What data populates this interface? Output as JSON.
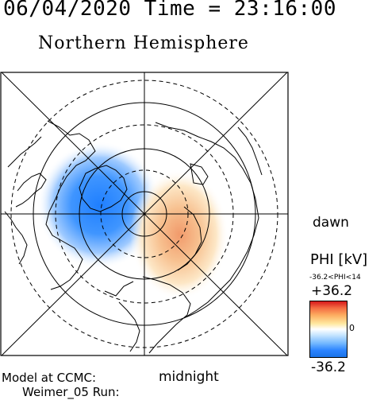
{
  "header": {
    "date_time": "06/04/2020 Time = 23:16:00",
    "title": "Northern Hemisphere"
  },
  "map": {
    "direction_labels": {
      "right": "dawn",
      "bottom": "midnight"
    },
    "projection": "polar-stereographic",
    "potential_pattern": {
      "negative_cell_color": "#2b83ff",
      "positive_cell_color": "#f4a261"
    }
  },
  "legend": {
    "quantity": "PHI [kV]",
    "range_text": "-36.2<PHI<14",
    "max_label": "+36.2",
    "mid_label": "0",
    "min_label": "-36.2",
    "colors": {
      "max": "#d7191c",
      "mid": "#ffffff",
      "min": "#1a73e8"
    }
  },
  "footer": {
    "model_label": "Model at CCMC:",
    "run_label": "Weimer_05 Run:"
  }
}
